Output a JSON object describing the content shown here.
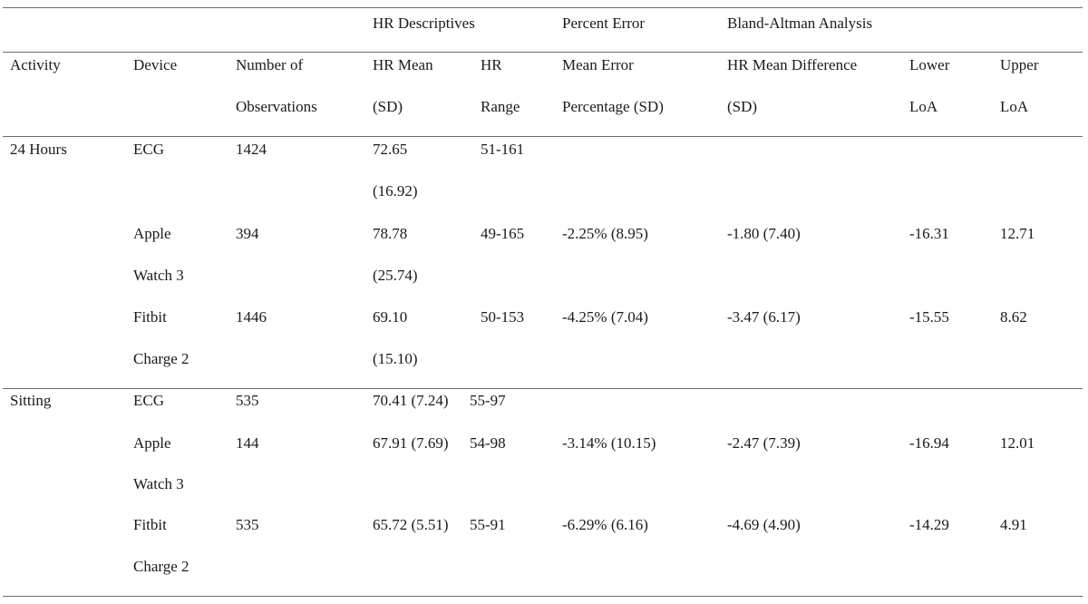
{
  "group_headers": {
    "hr_descriptives": "HR Descriptives",
    "percent_error": "Percent Error",
    "bland_altman": "Bland-Altman Analysis"
  },
  "columns": {
    "activity": "Activity",
    "device": "Device",
    "obs_line1": "Number of",
    "obs_line2": "Observations",
    "hr_mean_line1": "HR Mean",
    "hr_mean_line2": "(SD)",
    "hr_range_line1": "HR",
    "hr_range_line2": "Range",
    "mean_error_line1": "Mean Error",
    "mean_error_line2": "Percentage (SD)",
    "hr_diff_line1": "HR Mean Difference",
    "hr_diff_line2": "(SD)",
    "lower_line1": "Lower",
    "lower_line2": "LoA",
    "upper_line1": "Upper",
    "upper_line2": "LoA"
  },
  "rows": [
    {
      "activity": "24 Hours",
      "device_line1": "ECG",
      "device_line2": "",
      "obs": "1424",
      "hr_mean_line1": "72.65",
      "hr_mean_line2": "(16.92)",
      "hr_range": "51-161",
      "mean_error": "",
      "hr_diff": "",
      "lower": "",
      "upper": ""
    },
    {
      "activity": "",
      "device_line1": "Apple",
      "device_line2": "Watch 3",
      "obs": "394",
      "hr_mean_line1": "78.78",
      "hr_mean_line2": "(25.74)",
      "hr_range": "49-165",
      "mean_error": "-2.25% (8.95)",
      "hr_diff": "-1.80 (7.40)",
      "lower": "-16.31",
      "upper": "12.71"
    },
    {
      "activity": "",
      "device_line1": "Fitbit",
      "device_line2": "Charge 2",
      "obs": "1446",
      "hr_mean_line1": "69.10",
      "hr_mean_line2": "(15.10)",
      "hr_range": "50-153",
      "mean_error": "-4.25% (7.04)",
      "hr_diff": "-3.47 (6.17)",
      "lower": "-15.55",
      "upper": "8.62"
    },
    {
      "activity": "Sitting",
      "device_line1": "ECG",
      "device_line2": "",
      "obs": "535",
      "hr_mean_line1": "70.41 (7.24)",
      "hr_mean_line2": "",
      "hr_range": "55-97",
      "mean_error": "",
      "hr_diff": "",
      "lower": "",
      "upper": ""
    },
    {
      "activity": "",
      "device_line1": "Apple",
      "device_line2": "Watch 3",
      "obs": "144",
      "hr_mean_line1": "67.91 (7.69)",
      "hr_mean_line2": "",
      "hr_range": "54-98",
      "mean_error": "-3.14% (10.15)",
      "hr_diff": "-2.47 (7.39)",
      "lower": "-16.94",
      "upper": "12.01"
    },
    {
      "activity": "",
      "device_line1": "Fitbit",
      "device_line2": "Charge 2",
      "obs": "535",
      "hr_mean_line1": "65.72 (5.51)",
      "hr_mean_line2": "",
      "hr_range": "55-91",
      "mean_error": "-6.29% (6.16)",
      "hr_diff": "-4.69 (4.90)",
      "lower": "-14.29",
      "upper": "4.91"
    }
  ]
}
